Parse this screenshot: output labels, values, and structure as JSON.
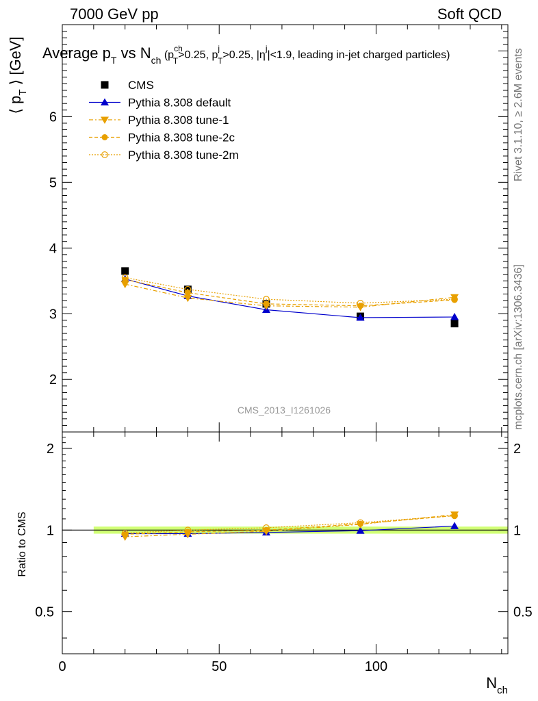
{
  "header": {
    "left": "7000 GeV pp",
    "right": "Soft QCD"
  },
  "side_labels": {
    "rivet": "Rivet 3.1.10, ≥ 2.6M events",
    "mcplots": "mcplots.cern.ch [arXiv:1306.3436]"
  },
  "watermark": "CMS_2013_I1261026",
  "colors": {
    "cms": "#000000",
    "default": "#0000cc",
    "tunes": "#e8a000",
    "band": "#ccff66"
  },
  "chart_data": [
    {
      "type": "line",
      "title_parts": {
        "main": "Average p",
        "main_sub": "T",
        "vs": " vs N",
        "vs_sub": "ch",
        "cut1": " (p",
        "cut1_sup": "ch",
        "cut1_sub": "T",
        "cut1_val": ">0.25, p",
        "cut2_sup": "j",
        "cut2_sub": "T",
        "cut2_val": ">0.25, |η",
        "cut3_sup": "j",
        "cut3_val": "|<1.9, leading in-jet charged particles)"
      },
      "ylabel": {
        "pre": "⟨ p",
        "sub": "T",
        "post": " ⟩ [GeV]"
      },
      "xlim": [
        0,
        142
      ],
      "ylim": [
        1.2,
        7.4
      ],
      "yticks": [
        2,
        3,
        4,
        5,
        6
      ],
      "legend_placement": "top-left",
      "series": [
        {
          "name": "CMS",
          "marker": "square",
          "style": "points",
          "x": [
            20,
            40,
            65,
            95,
            125
          ],
          "values": [
            3.65,
            3.37,
            3.15,
            2.96,
            2.85
          ]
        },
        {
          "name": "Pythia 8.308 default",
          "marker": "triangle-up",
          "style": "solid",
          "x": [
            20,
            40,
            65,
            95,
            125
          ],
          "values": [
            3.53,
            3.27,
            3.06,
            2.94,
            2.95
          ]
        },
        {
          "name": "Pythia 8.308 tune-1",
          "marker": "triangle-down",
          "style": "dashdot",
          "x": [
            20,
            40,
            65,
            95,
            125
          ],
          "values": [
            3.45,
            3.24,
            3.12,
            3.1,
            3.25
          ]
        },
        {
          "name": "Pythia 8.308 tune-2c",
          "marker": "circle-filled",
          "style": "dashed",
          "x": [
            20,
            40,
            65,
            95,
            125
          ],
          "values": [
            3.52,
            3.32,
            3.15,
            3.12,
            3.21
          ]
        },
        {
          "name": "Pythia 8.308 tune-2m",
          "marker": "circle-open",
          "style": "dotted",
          "x": [
            20,
            40,
            65,
            95,
            125
          ],
          "values": [
            3.55,
            3.37,
            3.22,
            3.16,
            3.22
          ]
        }
      ]
    },
    {
      "type": "line",
      "ylabel": "Ratio to CMS",
      "xlabel": {
        "main": "N",
        "sub": "ch"
      },
      "xlim": [
        0,
        142
      ],
      "ylim": [
        0.35,
        2.3
      ],
      "yticks": [
        0.5,
        1,
        2
      ],
      "xticks": [
        0,
        50,
        100
      ],
      "band": {
        "xmin": 10,
        "xmax": 142,
        "y0": 0.97,
        "y1": 1.03
      },
      "series": [
        {
          "name": "Pythia 8.308 default",
          "marker": "triangle-up",
          "style": "solid",
          "x": [
            20,
            40,
            65,
            95,
            125
          ],
          "values": [
            0.97,
            0.97,
            0.98,
            0.995,
            1.035
          ]
        },
        {
          "name": "Pythia 8.308 tune-1",
          "marker": "triangle-down",
          "style": "dashdot",
          "x": [
            20,
            40,
            65,
            95,
            125
          ],
          "values": [
            0.945,
            0.965,
            0.99,
            1.05,
            1.14
          ]
        },
        {
          "name": "Pythia 8.308 tune-2c",
          "marker": "circle-filled",
          "style": "dashed",
          "x": [
            20,
            40,
            65,
            95,
            125
          ],
          "values": [
            0.965,
            0.985,
            1.0,
            1.055,
            1.13
          ]
        },
        {
          "name": "Pythia 8.308 tune-2m",
          "marker": "circle-open",
          "style": "dotted",
          "x": [
            20,
            40,
            65,
            95,
            125
          ],
          "values": [
            0.975,
            1.0,
            1.02,
            1.065,
            1.13
          ]
        }
      ]
    }
  ]
}
